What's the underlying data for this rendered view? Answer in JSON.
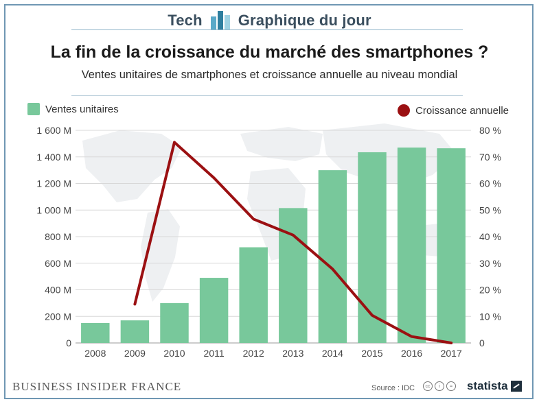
{
  "header": {
    "left_label": "Tech",
    "right_label": "Graphique du jour",
    "logo_icon": "bar-chart-logo-icon",
    "accent_color": "#3f86a6"
  },
  "title": "La fin de la croissance du marché des smartphones ?",
  "subtitle": "Ventes unitaires de smartphones et croissance annuelle au niveau mondial",
  "legend": {
    "bars_label": "Ventes unitaires",
    "line_label": "Croissance annuelle"
  },
  "colors": {
    "bar": "#78c89b",
    "line": "#9b1012",
    "grid": "#d8d8d8",
    "frame": "#6f97b3"
  },
  "chart_data": {
    "type": "bar",
    "categories": [
      "2008",
      "2009",
      "2010",
      "2011",
      "2012",
      "2013",
      "2014",
      "2015",
      "2016",
      "2017"
    ],
    "series": [
      {
        "name": "Ventes unitaires",
        "type": "bar",
        "axis": "left",
        "values": [
          150,
          170,
          300,
          490,
          720,
          1015,
          1300,
          1435,
          1470,
          1465
        ]
      },
      {
        "name": "Croissance annuelle",
        "type": "line",
        "axis": "right",
        "values": [
          null,
          14.6,
          75.5,
          62.1,
          46.6,
          40.6,
          27.8,
          10.4,
          2.4,
          0.0
        ]
      }
    ],
    "left_axis": {
      "ylim": [
        0,
        1600
      ],
      "ticks": [
        0,
        200,
        400,
        600,
        800,
        1000,
        1200,
        1400,
        1600
      ],
      "tick_labels": [
        "0",
        "200 M",
        "400 M",
        "600 M",
        "800 M",
        "1 000 M",
        "1 200 M",
        "1 400 M",
        "1 600 M"
      ]
    },
    "right_axis": {
      "ylim": [
        0,
        80
      ],
      "ticks": [
        0,
        10,
        20,
        30,
        40,
        50,
        60,
        70,
        80
      ],
      "tick_labels": [
        "0",
        "10 %",
        "20 %",
        "30 %",
        "40 %",
        "50 %",
        "60 %",
        "70 %",
        "80 %"
      ]
    },
    "grid": true,
    "legend_placement": "top"
  },
  "footer": {
    "brand_bold": "Business Insider",
    "brand_light": "France",
    "source": "Source : IDC",
    "cc_icons": [
      "cc",
      "i",
      "="
    ],
    "statista": "statista"
  }
}
